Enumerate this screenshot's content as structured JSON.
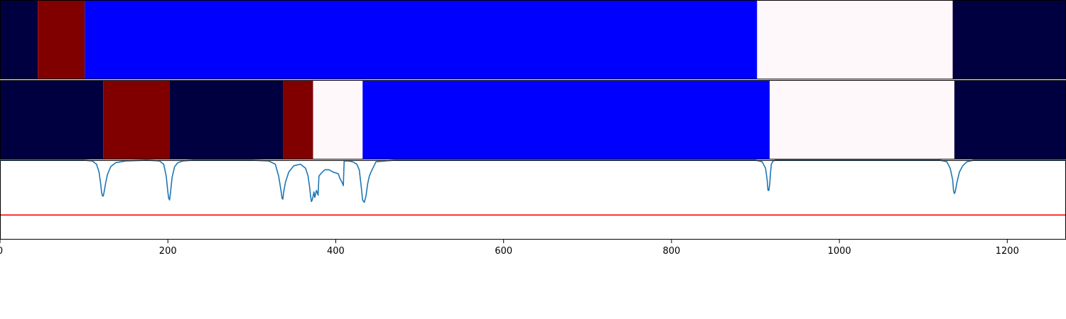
{
  "chart_data": [
    {
      "type": "segment-bar",
      "name": "",
      "xlim": [
        0,
        1270
      ],
      "colors": {
        "navy": "#000040",
        "darkred": "#800000",
        "blue": "#0000ff",
        "white": "#fff8fb"
      },
      "segments": [
        {
          "start": 0,
          "end": 45,
          "color": "navy"
        },
        {
          "start": 45,
          "end": 101,
          "color": "darkred"
        },
        {
          "start": 101,
          "end": 902,
          "color": "blue"
        },
        {
          "start": 902,
          "end": 1135,
          "color": "white"
        },
        {
          "start": 1135,
          "end": 1270,
          "color": "navy"
        }
      ]
    },
    {
      "type": "segment-bar",
      "name": "",
      "xlim": [
        0,
        1270
      ],
      "colors": {
        "navy": "#000040",
        "darkred": "#800000",
        "blue": "#0000ff",
        "white": "#fff8fb"
      },
      "segments": [
        {
          "start": 0,
          "end": 123,
          "color": "navy"
        },
        {
          "start": 123,
          "end": 202,
          "color": "darkred"
        },
        {
          "start": 202,
          "end": 337,
          "color": "navy"
        },
        {
          "start": 337,
          "end": 373,
          "color": "darkred"
        },
        {
          "start": 373,
          "end": 432,
          "color": "white"
        },
        {
          "start": 432,
          "end": 917,
          "color": "blue"
        },
        {
          "start": 917,
          "end": 1137,
          "color": "white"
        },
        {
          "start": 1137,
          "end": 1270,
          "color": "navy"
        }
      ]
    },
    {
      "type": "line",
      "xlim": [
        0,
        1270
      ],
      "ylim": [
        0,
        1
      ],
      "line_color": "#1f77b4",
      "threshold": {
        "value": 0.31,
        "color": "#ff0000"
      },
      "x": [
        0,
        100,
        110,
        115,
        118,
        120,
        121,
        122,
        123,
        124,
        126,
        128,
        132,
        138,
        150,
        175,
        190,
        195,
        198,
        200,
        201,
        202,
        203,
        205,
        208,
        212,
        218,
        230,
        300,
        320,
        328,
        332,
        335,
        336,
        337,
        338,
        340,
        344,
        350,
        358,
        364,
        367,
        369,
        370,
        371,
        372,
        373,
        374,
        375,
        377,
        379,
        380,
        383,
        387,
        392,
        397,
        403,
        405,
        407,
        408,
        409,
        410,
        415,
        420,
        425,
        428,
        430,
        432,
        434,
        436,
        438,
        440,
        442,
        448,
        470,
        900,
        908,
        912,
        914,
        915,
        916,
        917,
        918,
        919,
        921,
        924,
        932,
        1000,
        1120,
        1128,
        1132,
        1135,
        1136,
        1137,
        1138,
        1140,
        1143,
        1147,
        1152,
        1160,
        1270
      ],
      "y": [
        1.0,
        1.0,
        0.99,
        0.95,
        0.85,
        0.7,
        0.6,
        0.55,
        0.55,
        0.6,
        0.72,
        0.82,
        0.92,
        0.97,
        0.99,
        1.0,
        0.99,
        0.95,
        0.8,
        0.6,
        0.52,
        0.5,
        0.58,
        0.78,
        0.92,
        0.97,
        0.99,
        1.0,
        1.0,
        0.99,
        0.95,
        0.8,
        0.6,
        0.52,
        0.51,
        0.6,
        0.72,
        0.85,
        0.93,
        0.95,
        0.9,
        0.8,
        0.65,
        0.55,
        0.48,
        0.5,
        0.55,
        0.6,
        0.53,
        0.62,
        0.56,
        0.8,
        0.84,
        0.88,
        0.88,
        0.85,
        0.83,
        0.77,
        0.73,
        0.71,
        0.68,
        0.99,
        0.99,
        0.98,
        0.95,
        0.88,
        0.7,
        0.5,
        0.47,
        0.55,
        0.7,
        0.8,
        0.85,
        0.98,
        1.0,
        1.0,
        0.98,
        0.9,
        0.75,
        0.62,
        0.62,
        0.7,
        0.85,
        0.95,
        0.99,
        1.0,
        1.0,
        1.0,
        1.0,
        0.98,
        0.9,
        0.75,
        0.62,
        0.58,
        0.6,
        0.72,
        0.85,
        0.93,
        0.98,
        1.0,
        1.0
      ]
    }
  ],
  "x_axis": {
    "ticks": [
      0,
      200,
      400,
      600,
      800,
      1000,
      1200
    ],
    "tick_labels": [
      "0",
      "200",
      "400",
      "600",
      "800",
      "1000",
      "1200"
    ]
  }
}
